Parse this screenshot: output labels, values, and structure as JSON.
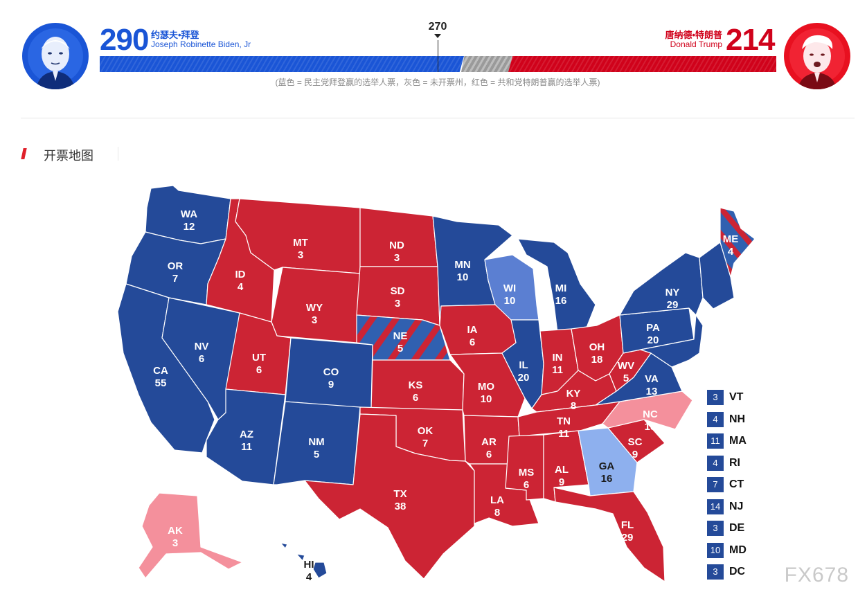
{
  "threshold": "270",
  "biden": {
    "votes": "290",
    "name_cn": "约瑟夫•拜登",
    "name_en": "Joseph Robinette Biden, Jr",
    "color": "#1a55d6"
  },
  "trump": {
    "votes": "214",
    "name_cn": "唐纳德•特朗普",
    "name_en": "Donald Trump",
    "color": "#d0021b"
  },
  "undecided_color": "#9a9a9a",
  "legend_note": "(蓝色 = 民主党拜登赢的选举人票，灰色 = 未开票州，红色 = 共和党特朗普赢的选举人票)",
  "section_title": "开票地图",
  "colors": {
    "dem": "#244a99",
    "rep": "#cc2434",
    "dem_lean": "#5b7fd2",
    "dem_light": "#8eb0ee",
    "rep_light": "#f4909c"
  },
  "states": {
    "WA": {
      "abbr": "WA",
      "ev": "12"
    },
    "OR": {
      "abbr": "OR",
      "ev": "7"
    },
    "CA": {
      "abbr": "CA",
      "ev": "55"
    },
    "NV": {
      "abbr": "NV",
      "ev": "6"
    },
    "ID": {
      "abbr": "ID",
      "ev": "4"
    },
    "MT": {
      "abbr": "MT",
      "ev": "3"
    },
    "WY": {
      "abbr": "WY",
      "ev": "3"
    },
    "UT": {
      "abbr": "UT",
      "ev": "6"
    },
    "AZ": {
      "abbr": "AZ",
      "ev": "11"
    },
    "CO": {
      "abbr": "CO",
      "ev": "9"
    },
    "NM": {
      "abbr": "NM",
      "ev": "5"
    },
    "ND": {
      "abbr": "ND",
      "ev": "3"
    },
    "SD": {
      "abbr": "SD",
      "ev": "3"
    },
    "NE": {
      "abbr": "NE",
      "ev": "5"
    },
    "KS": {
      "abbr": "KS",
      "ev": "6"
    },
    "OK": {
      "abbr": "OK",
      "ev": "7"
    },
    "TX": {
      "abbr": "TX",
      "ev": "38"
    },
    "MN": {
      "abbr": "MN",
      "ev": "10"
    },
    "IA": {
      "abbr": "IA",
      "ev": "6"
    },
    "MO": {
      "abbr": "MO",
      "ev": "10"
    },
    "AR": {
      "abbr": "AR",
      "ev": "6"
    },
    "LA": {
      "abbr": "LA",
      "ev": "8"
    },
    "WI": {
      "abbr": "WI",
      "ev": "10"
    },
    "IL": {
      "abbr": "IL",
      "ev": "20"
    },
    "MI": {
      "abbr": "MI",
      "ev": "16"
    },
    "IN": {
      "abbr": "IN",
      "ev": "11"
    },
    "OH": {
      "abbr": "OH",
      "ev": "18"
    },
    "KY": {
      "abbr": "KY",
      "ev": "8"
    },
    "TN": {
      "abbr": "TN",
      "ev": "11"
    },
    "MS": {
      "abbr": "MS",
      "ev": "6"
    },
    "AL": {
      "abbr": "AL",
      "ev": "9"
    },
    "GA": {
      "abbr": "GA",
      "ev": "16"
    },
    "FL": {
      "abbr": "FL",
      "ev": "29"
    },
    "SC": {
      "abbr": "SC",
      "ev": "9"
    },
    "NC": {
      "abbr": "NC",
      "ev": "15"
    },
    "VA": {
      "abbr": "VA",
      "ev": "13"
    },
    "WV": {
      "abbr": "WV",
      "ev": "5"
    },
    "PA": {
      "abbr": "PA",
      "ev": "20"
    },
    "NY": {
      "abbr": "NY",
      "ev": "29"
    },
    "ME": {
      "abbr": "ME",
      "ev": "4"
    },
    "AK": {
      "abbr": "AK",
      "ev": "3"
    },
    "HI": {
      "abbr": "HI",
      "ev": "4"
    }
  },
  "small_states": [
    {
      "ev": "3",
      "abbr": "VT"
    },
    {
      "ev": "4",
      "abbr": "NH"
    },
    {
      "ev": "11",
      "abbr": "MA"
    },
    {
      "ev": "4",
      "abbr": "RI"
    },
    {
      "ev": "7",
      "abbr": "CT"
    },
    {
      "ev": "14",
      "abbr": "NJ"
    },
    {
      "ev": "3",
      "abbr": "DE"
    },
    {
      "ev": "10",
      "abbr": "MD"
    },
    {
      "ev": "3",
      "abbr": "DC"
    }
  ],
  "watermark": "FX678"
}
